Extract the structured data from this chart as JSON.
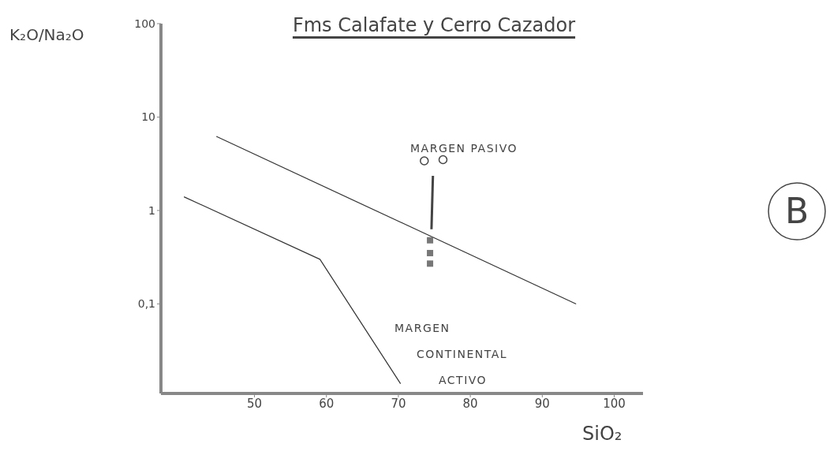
{
  "chart_data": {
    "type": "line",
    "title": "Fms Calafate y Cerro Cazador",
    "xlabel": "SiO₂",
    "ylabel": "K₂O/Na₂O",
    "log": "y",
    "xlim": [
      37,
      104
    ],
    "xticks": [
      50,
      60,
      70,
      80,
      90,
      100
    ],
    "ylim": [
      0.011,
      100
    ],
    "yticks": [
      {
        "value": 0.1,
        "label": "0,1"
      },
      1,
      10,
      100
    ],
    "series": [
      {
        "color": "#333333",
        "marker": "none",
        "x": [
          44.7,
          94.7
        ],
        "values": [
          6.2,
          0.1
        ]
      },
      {
        "color": "#333333",
        "marker": "none",
        "x": [
          40.2,
          59.1,
          70.3
        ],
        "values": [
          1.4,
          0.3,
          0.014
        ]
      },
      {
        "color": "#444444",
        "marker": "none",
        "x": [
          74.8,
          74.6
        ],
        "values": [
          2.35,
          0.63
        ]
      },
      {
        "type": "scatter",
        "color": "#444444",
        "marker": "circle",
        "x": [
          73.6,
          76.2
        ],
        "values": [
          3.4,
          3.5
        ]
      },
      {
        "type": "scatter",
        "color": "#777777",
        "marker": "square",
        "x": [
          74.4,
          74.4,
          74.4
        ],
        "values": [
          0.48,
          0.35,
          0.27
        ]
      }
    ],
    "annotations": [
      "MARGEN PASIVO",
      "MARGEN CONTINENTAL ACTIVO",
      "B"
    ]
  }
}
